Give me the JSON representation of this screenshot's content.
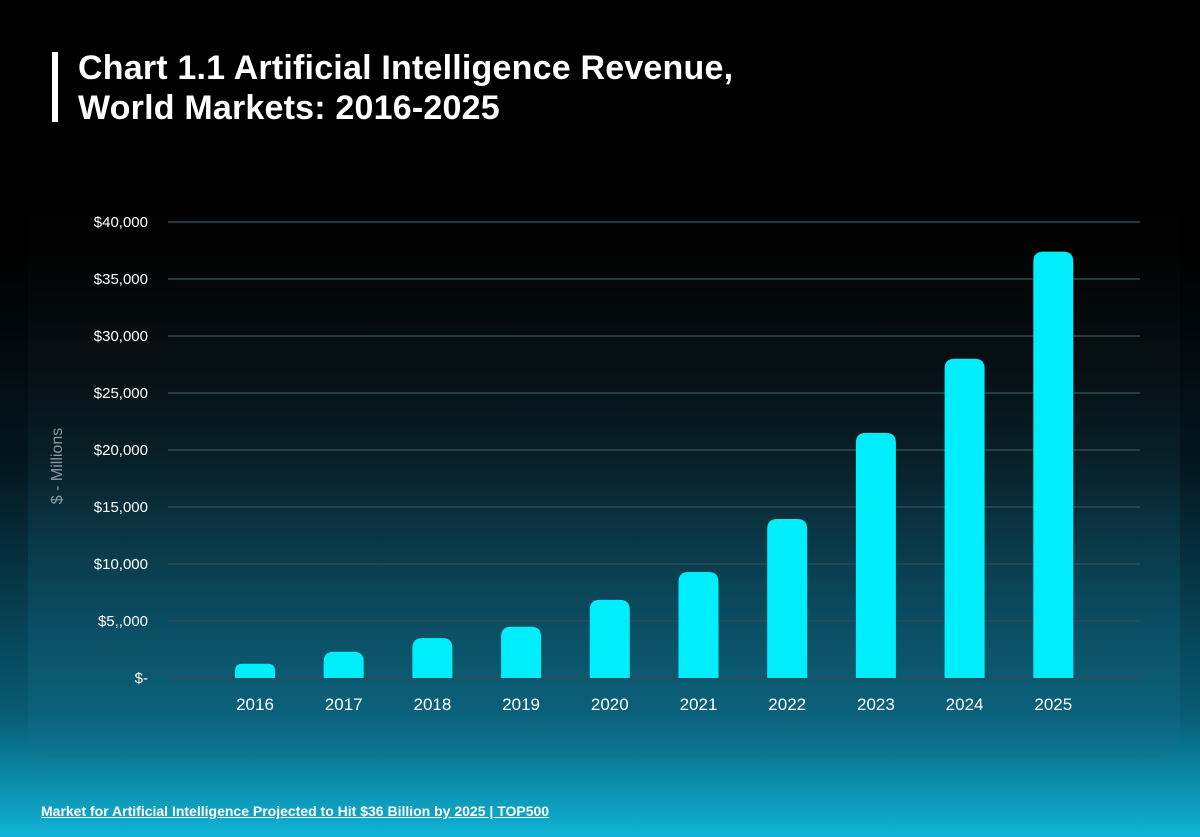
{
  "title_line1": "Chart 1.1 Artificial Intelligence Revenue,",
  "title_line2": "World Markets: 2016-2025",
  "footer_link": "Market for Artificial Intelligence Projected to Hit $36 Billion by 2025 | TOP500",
  "colors": {
    "bar": "#00eefc",
    "grid": "#2f4a55"
  },
  "chart_data": {
    "type": "bar",
    "title": "Chart 1.1 Artificial Intelligence Revenue, World Markets: 2016-2025",
    "xlabel": "",
    "ylabel": "$ - Millions",
    "categories": [
      "2016",
      "2017",
      "2018",
      "2019",
      "2020",
      "2021",
      "2022",
      "2023",
      "2024",
      "2025"
    ],
    "values": [
      1250,
      2300,
      3500,
      4500,
      6850,
      9300,
      13950,
      21500,
      28000,
      37400
    ],
    "ylim": [
      0,
      40000
    ],
    "yticks": [
      0,
      5000,
      10000,
      15000,
      20000,
      25000,
      30000,
      35000,
      40000
    ],
    "ytick_labels": [
      "$-",
      "$5,,000",
      "$10,000",
      "$15,000",
      "$20,000",
      "$25,000",
      "$30,000",
      "$35,000",
      "$40,000"
    ],
    "grid": true,
    "legend": "none"
  }
}
